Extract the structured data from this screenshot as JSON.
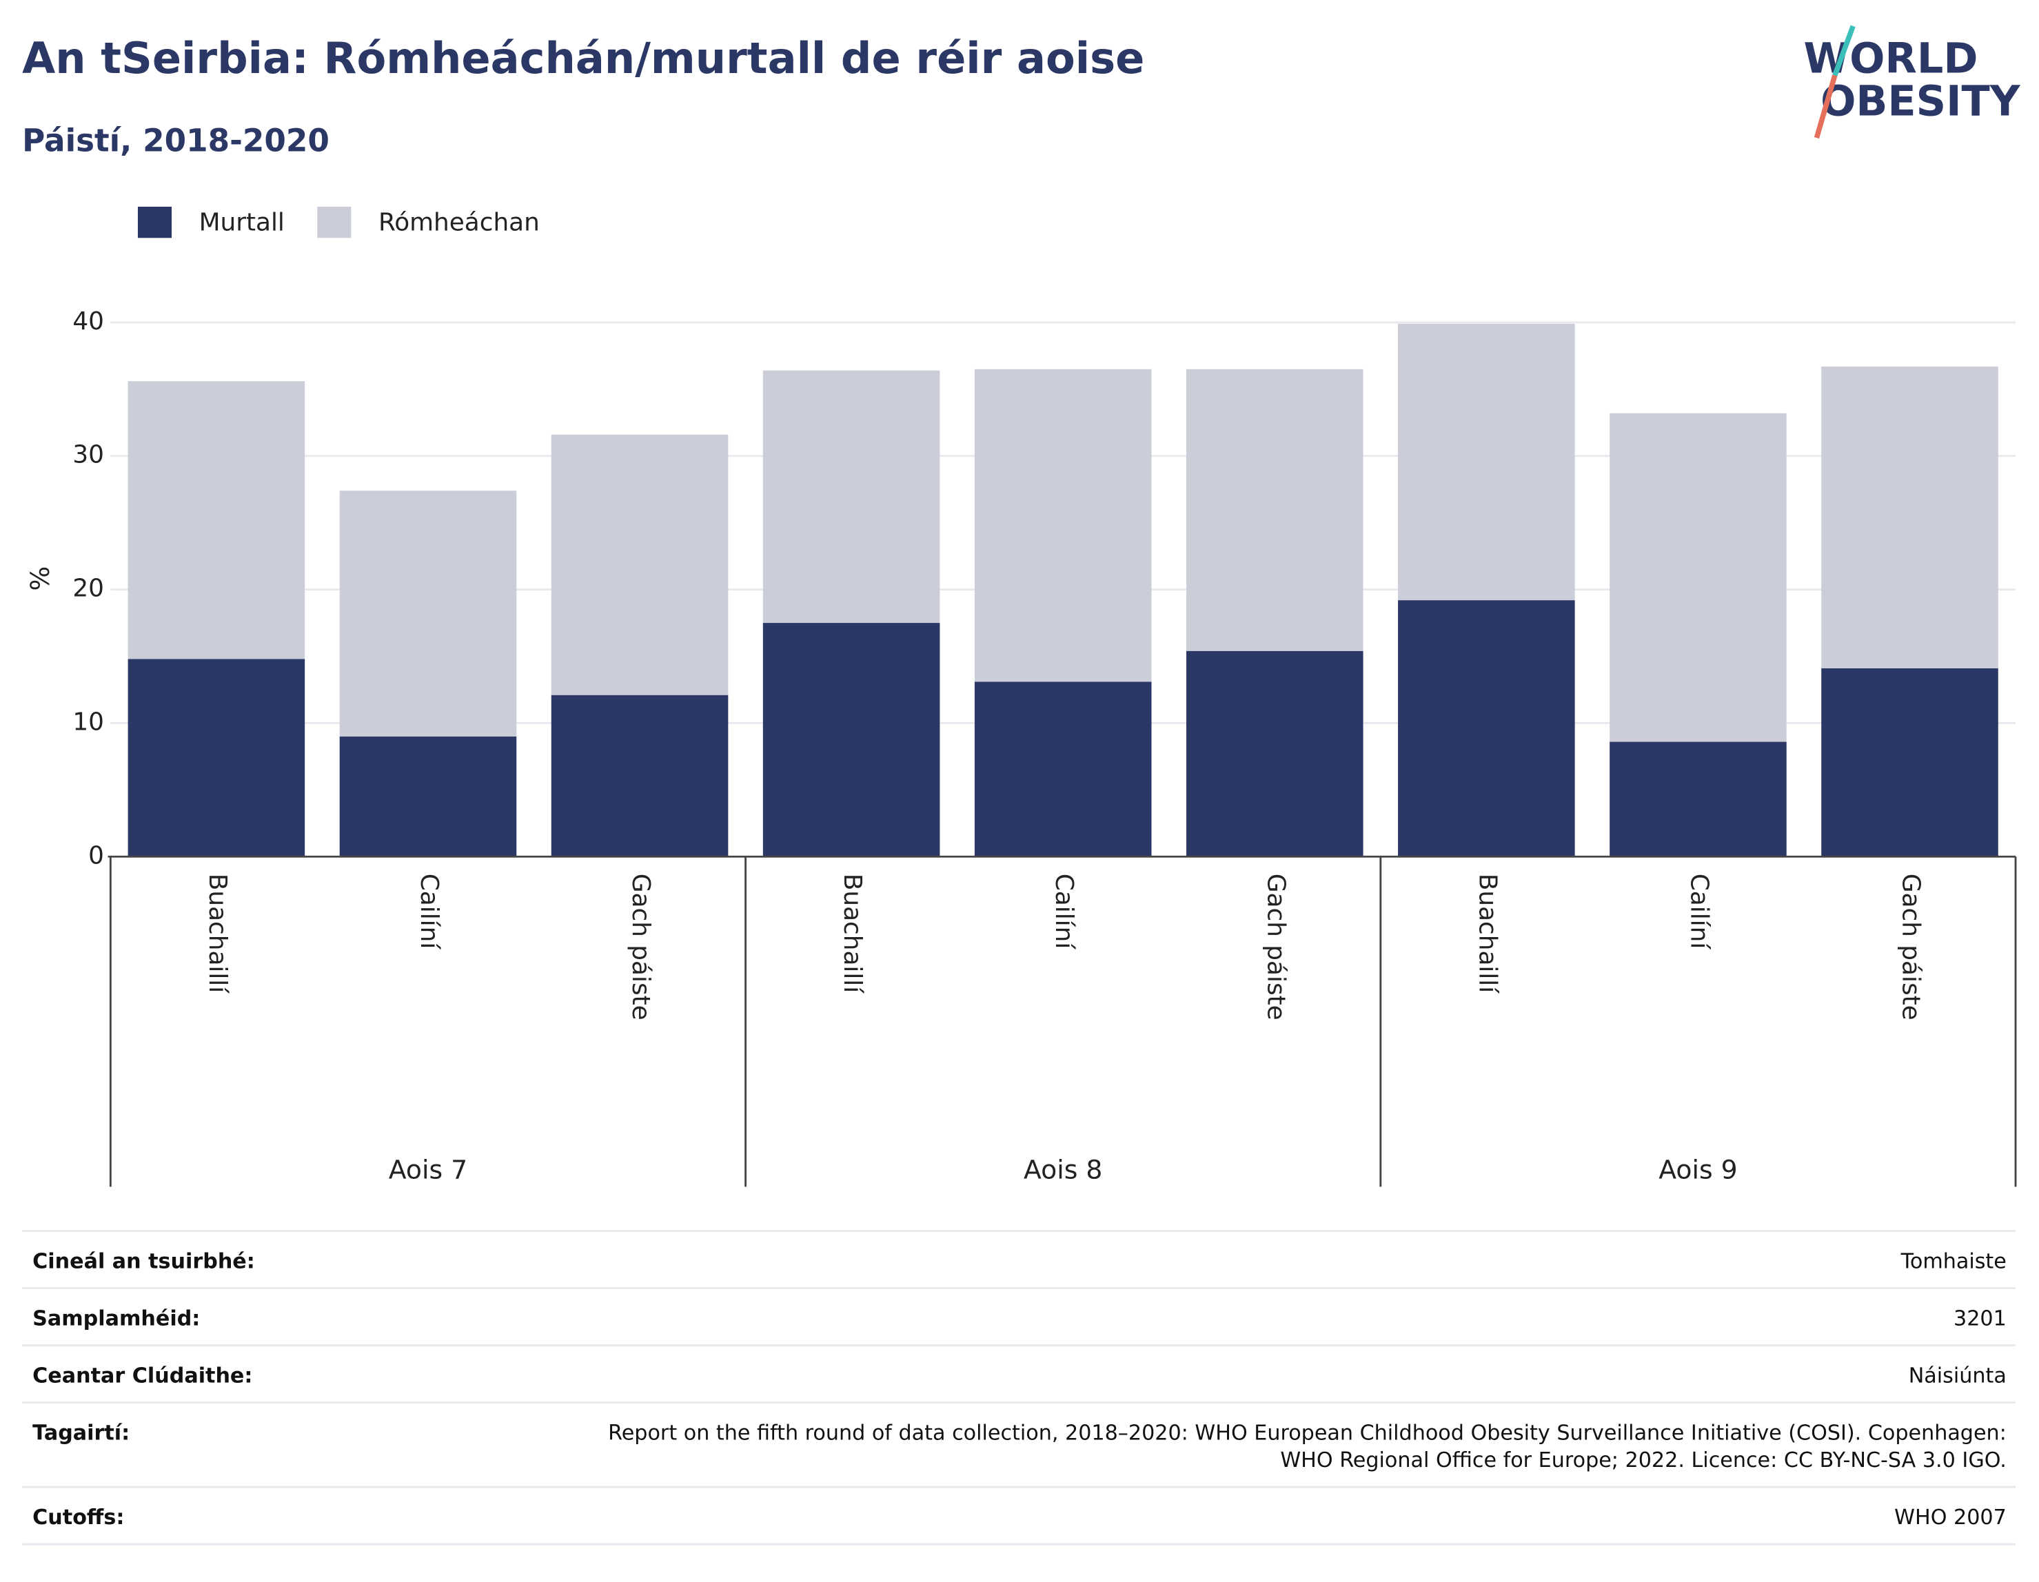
{
  "chart_data": {
    "type": "stacked_bar",
    "title": "An tSeirbia: Rómheáchán/murtall de réir aoise",
    "subtitle": "Páistí, 2018-2020",
    "y_label": "%",
    "groups": [
      "Aois 7",
      "Aois 8",
      "Aois 9"
    ],
    "categories": [
      "Buachaillí",
      "Cailíní",
      "Gach páiste",
      "Buachaillí",
      "Cailíní",
      "Gach páiste",
      "Buachaillí",
      "Cailíní",
      "Gach páiste"
    ],
    "series": [
      {
        "name": "Murtall",
        "color": "#2b3764",
        "values": [
          14.8,
          9.0,
          12.1,
          17.5,
          13.1,
          15.4,
          19.2,
          8.6,
          14.1
        ]
      },
      {
        "name": "Rómheáchan",
        "color": "#cbcdd9",
        "values": [
          20.8,
          18.4,
          19.5,
          18.9,
          23.4,
          21.1,
          20.7,
          24.6,
          22.6
        ]
      }
    ],
    "ylim": [
      0,
      40
    ],
    "yticks": [
      0,
      10,
      20,
      30,
      40
    ],
    "grid": true,
    "legend": "top-left"
  },
  "logo": {
    "line1": "WORLD",
    "line2": "OBESITY"
  },
  "info": [
    {
      "label": "Cineál an tsuirbhé:",
      "value_lines": [
        "Tomhaiste"
      ]
    },
    {
      "label": "Samplamhéid:",
      "value_lines": [
        "3201"
      ]
    },
    {
      "label": "Ceantar Clúdaithe:",
      "value_lines": [
        "Náisiúnta"
      ]
    },
    {
      "label": "Tagairtí:",
      "value_lines": [
        "Report on the fifth round of data collection, 2018–2020: WHO European Childhood Obesity Surveillance Initiative (COSI). Copenhagen:",
        "WHO Regional Office for Europe; 2022. Licence: CC BY-NC-SA 3.0 IGO."
      ]
    },
    {
      "label": "Cutoffs:",
      "value_lines": [
        "WHO 2007"
      ]
    }
  ]
}
